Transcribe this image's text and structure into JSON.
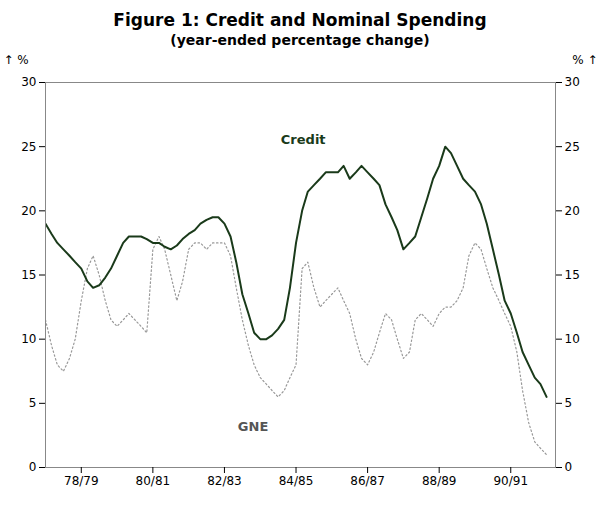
{
  "chart_data": {
    "type": "line",
    "title": "Figure 1: Credit and Nominal Spending",
    "subtitle": "(year-ended percentage change)",
    "y_label": "%",
    "y2_label": "%",
    "xlim": [
      1977.0,
      1991.25
    ],
    "xticks": [
      {
        "value": 1978.0,
        "label": "78/79"
      },
      {
        "value": 1980.0,
        "label": "80/81"
      },
      {
        "value": 1982.0,
        "label": "82/83"
      },
      {
        "value": 1984.0,
        "label": "84/85"
      },
      {
        "value": 1986.0,
        "label": "86/87"
      },
      {
        "value": 1988.0,
        "label": "88/89"
      },
      {
        "value": 1990.0,
        "label": "90/91"
      }
    ],
    "ylim": [
      0,
      30
    ],
    "yticks": [
      0,
      5,
      10,
      15,
      20,
      25,
      30
    ],
    "y2lim": [
      0,
      30
    ],
    "y2ticks": [
      0,
      5,
      10,
      15,
      20,
      25,
      30
    ],
    "grid": false,
    "x": [
      1977.0,
      1977.17,
      1977.33,
      1977.5,
      1977.67,
      1977.83,
      1978.0,
      1978.17,
      1978.33,
      1978.5,
      1978.67,
      1978.83,
      1979.0,
      1979.17,
      1979.33,
      1979.5,
      1979.67,
      1979.83,
      1980.0,
      1980.17,
      1980.33,
      1980.5,
      1980.67,
      1980.83,
      1981.0,
      1981.17,
      1981.33,
      1981.5,
      1981.67,
      1981.83,
      1982.0,
      1982.17,
      1982.33,
      1982.5,
      1982.67,
      1982.83,
      1983.0,
      1983.17,
      1983.33,
      1983.5,
      1983.67,
      1983.83,
      1984.0,
      1984.17,
      1984.33,
      1984.5,
      1984.67,
      1984.83,
      1985.0,
      1985.17,
      1985.33,
      1985.5,
      1985.67,
      1985.83,
      1986.0,
      1986.17,
      1986.33,
      1986.5,
      1986.67,
      1986.83,
      1987.0,
      1987.17,
      1987.33,
      1987.5,
      1987.67,
      1987.83,
      1988.0,
      1988.17,
      1988.33,
      1988.5,
      1988.67,
      1988.83,
      1989.0,
      1989.17,
      1989.33,
      1989.5,
      1989.67,
      1989.83,
      1990.0,
      1990.17,
      1990.33,
      1990.5,
      1990.67,
      1990.83,
      1991.0
    ],
    "series": [
      {
        "name": "GNE",
        "color": "#999999",
        "line_style": "dotted",
        "values": [
          11.5,
          9.5,
          8.0,
          7.5,
          8.5,
          10.0,
          13.0,
          15.5,
          16.5,
          15.0,
          13.0,
          11.5,
          11.0,
          11.5,
          12.0,
          11.5,
          11.0,
          10.5,
          17.0,
          18.0,
          17.0,
          15.0,
          13.0,
          14.5,
          17.0,
          17.5,
          17.5,
          17.0,
          17.5,
          17.5,
          17.5,
          16.5,
          14.0,
          11.5,
          9.5,
          8.0,
          7.0,
          6.5,
          6.0,
          5.5,
          6.0,
          7.0,
          8.0,
          15.5,
          16.0,
          14.0,
          12.5,
          13.0,
          13.5,
          14.0,
          13.0,
          12.0,
          10.0,
          8.5,
          8.0,
          9.0,
          10.5,
          12.0,
          11.5,
          10.0,
          8.5,
          9.0,
          11.5,
          12.0,
          11.5,
          11.0,
          12.0,
          12.5,
          12.5,
          13.0,
          14.0,
          16.5,
          17.5,
          17.0,
          15.5,
          14.0,
          13.0,
          12.0,
          11.0,
          9.0,
          6.0,
          3.5,
          2.0,
          1.5,
          1.0
        ]
      },
      {
        "name": "Credit",
        "color": "#1a3a1a",
        "line_style": "solid",
        "values": [
          19.0,
          18.2,
          17.5,
          17.0,
          16.5,
          16.0,
          15.5,
          14.5,
          14.0,
          14.2,
          14.8,
          15.5,
          16.5,
          17.5,
          18.0,
          18.0,
          18.0,
          17.8,
          17.5,
          17.5,
          17.2,
          17.0,
          17.3,
          17.8,
          18.2,
          18.5,
          19.0,
          19.3,
          19.5,
          19.5,
          19.0,
          18.0,
          16.0,
          13.5,
          12.0,
          10.5,
          10.0,
          10.0,
          10.3,
          10.8,
          11.5,
          14.0,
          17.5,
          20.0,
          21.5,
          22.0,
          22.5,
          23.0,
          23.0,
          23.0,
          23.5,
          22.5,
          23.0,
          23.5,
          23.0,
          22.5,
          22.0,
          20.5,
          19.5,
          18.5,
          17.0,
          17.5,
          18.0,
          19.5,
          21.0,
          22.5,
          23.5,
          25.0,
          24.5,
          23.5,
          22.5,
          22.0,
          21.5,
          20.5,
          19.0,
          17.0,
          15.0,
          13.0,
          12.0,
          10.5,
          9.0,
          8.0,
          7.0,
          6.5,
          5.5
        ]
      }
    ],
    "annotations": [
      {
        "text": "Credit",
        "x": 1984.2,
        "y": 25.5
      },
      {
        "text": "GNE",
        "x": 1982.8,
        "y": 3.2
      }
    ]
  }
}
